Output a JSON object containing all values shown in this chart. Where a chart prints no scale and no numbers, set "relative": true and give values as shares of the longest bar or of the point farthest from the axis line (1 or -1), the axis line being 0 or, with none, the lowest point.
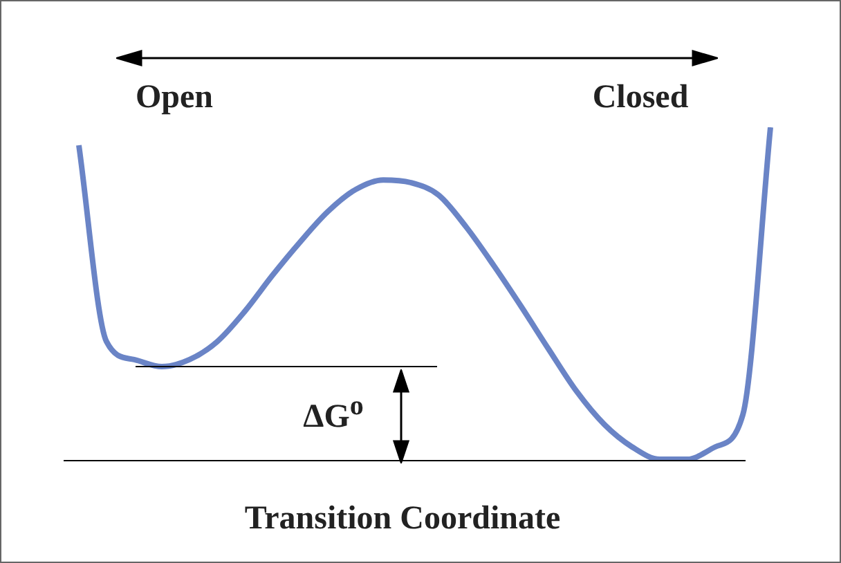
{
  "chart_data": {
    "type": "line",
    "relative": true,
    "xlabel": "Transition Coordinate",
    "categories": [
      null,
      null,
      null,
      null,
      null,
      null,
      null,
      null,
      null,
      null,
      null,
      null,
      null,
      null,
      null,
      null,
      null,
      null,
      null,
      null,
      null,
      null,
      null,
      null,
      null,
      null
    ],
    "series": [
      {
        "color": "#6a84c6",
        "values": [
          0.946,
          0.357,
          0.303,
          0.282,
          0.303,
          0.357,
          0.448,
          0.556,
          0.656,
          0.747,
          0.813,
          0.842,
          0.834,
          0.797,
          0.701,
          0.585,
          0.461,
          0.332,
          0.207,
          0.108,
          0.041,
          0.004,
          0.004,
          0.041,
          0.137,
          1
        ]
      }
    ],
    "ref_lines": [
      {
        "axis": "y",
        "value": 0.282,
        "color": "#000000"
      },
      {
        "axis": "y",
        "value": 0,
        "color": "#000000"
      }
    ],
    "annotations": [
      "Open",
      "Closed",
      "ΔG$^{o}$"
    ],
    "marker": "none",
    "legend": false
  }
}
